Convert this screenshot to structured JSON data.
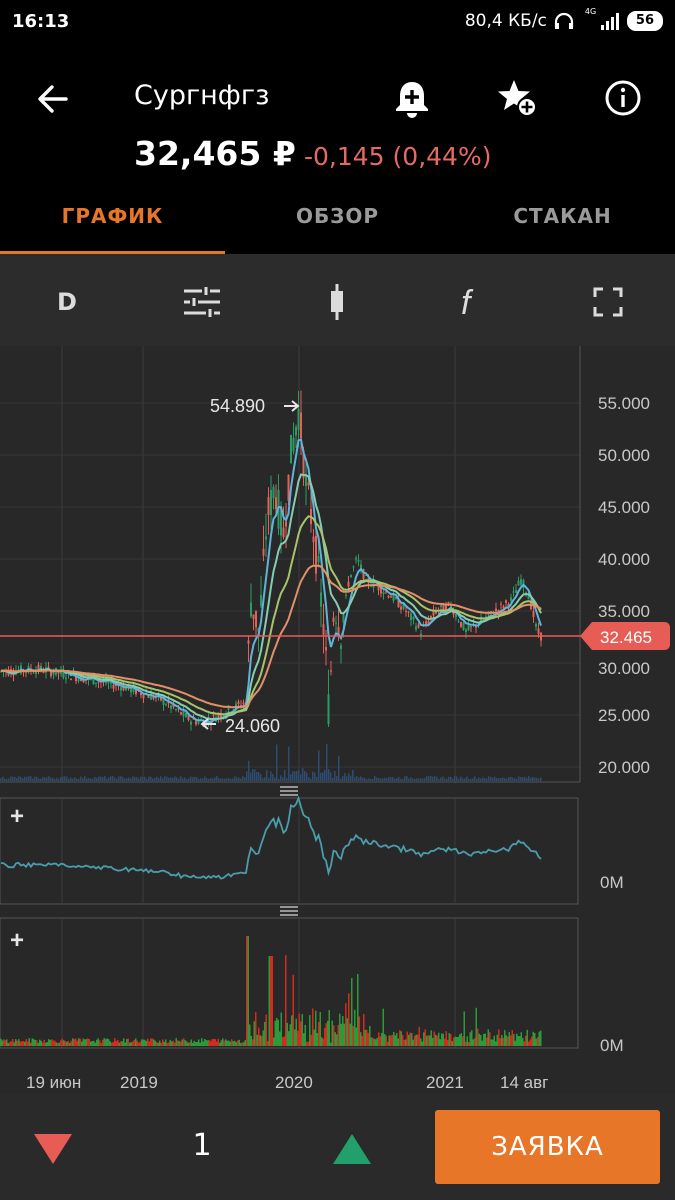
{
  "status": {
    "time": "16:13",
    "network_speed": "80,4 КБ/с",
    "signal": "4G",
    "battery": "56"
  },
  "header": {
    "ticker": "Сургнфгз",
    "price": "32,465 ₽",
    "change": "-0,145 (0,44%)"
  },
  "tabs": [
    {
      "label": "ГРАФИК",
      "active": true
    },
    {
      "label": "ОБЗОР",
      "active": false
    },
    {
      "label": "СТАКАН",
      "active": false
    }
  ],
  "toolbar": {
    "period": "D"
  },
  "chart": {
    "price_labels": [
      "55.000",
      "50.000",
      "45.000",
      "40.000",
      "35.000",
      "30.000",
      "25.000",
      "20.000"
    ],
    "current_price": "32.465",
    "max_marker": "54.890",
    "min_marker": "24.060",
    "indicator_zero": "0M",
    "volume_zero": "0M",
    "x_labels": [
      "19 июн",
      "2019",
      "2020",
      "2021",
      "14 авг"
    ]
  },
  "colors": {
    "accent": "#e87628",
    "down": "#e66a63",
    "up": "#22a06b"
  },
  "bottom": {
    "quantity": "1",
    "order_label": "ЗАЯВКА"
  }
}
